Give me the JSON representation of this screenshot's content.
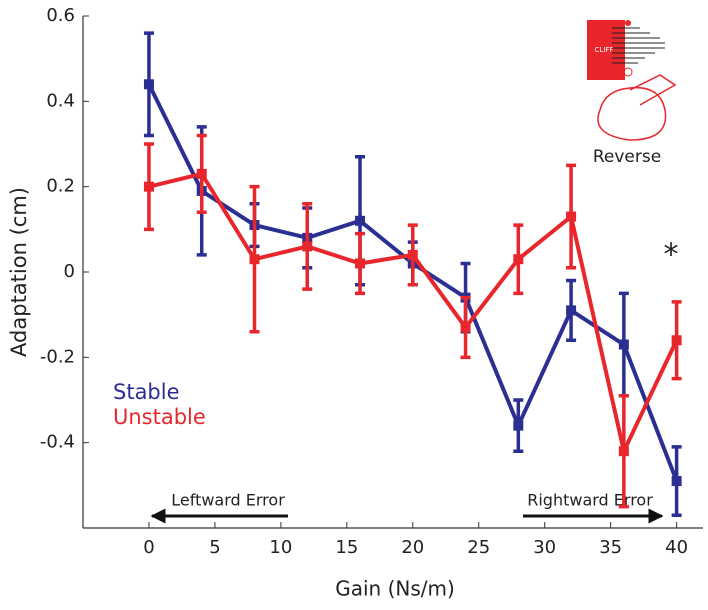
{
  "chart_data": {
    "type": "line",
    "x_label": "Gain (Ns/m)",
    "y_label": "Adaptation (cm)",
    "x": [
      0,
      4,
      8,
      12,
      16,
      20,
      24,
      28,
      32,
      36,
      40
    ],
    "series": [
      {
        "name": "Stable",
        "color": "#2b2f92",
        "values": [
          0.44,
          0.19,
          0.11,
          0.08,
          0.12,
          0.02,
          -0.06,
          -0.36,
          -0.09,
          -0.17,
          -0.49
        ],
        "errors": [
          0.12,
          0.15,
          0.05,
          0.07,
          0.15,
          0.05,
          0.08,
          0.06,
          0.07,
          0.12,
          0.08
        ]
      },
      {
        "name": "Unstable",
        "color": "#e8262b",
        "values": [
          0.2,
          0.23,
          0.03,
          0.06,
          0.02,
          0.04,
          -0.13,
          0.03,
          0.13,
          -0.42,
          -0.16
        ],
        "errors": [
          0.1,
          0.09,
          0.17,
          0.1,
          0.07,
          0.07,
          0.07,
          0.08,
          0.12,
          0.13,
          0.09
        ]
      }
    ],
    "xlim": [
      -5,
      42
    ],
    "xticks": [
      0,
      5,
      10,
      15,
      20,
      25,
      30,
      35,
      40
    ],
    "ylim": [
      -0.6,
      0.6
    ],
    "yticks": [
      -0.4,
      -0.2,
      0,
      0.2,
      0.4,
      0.6
    ],
    "annotations": [
      "Leftward Error",
      "Rightward Error",
      "*"
    ],
    "inset": {
      "label": "Reverse",
      "text": "CLIFF"
    }
  }
}
